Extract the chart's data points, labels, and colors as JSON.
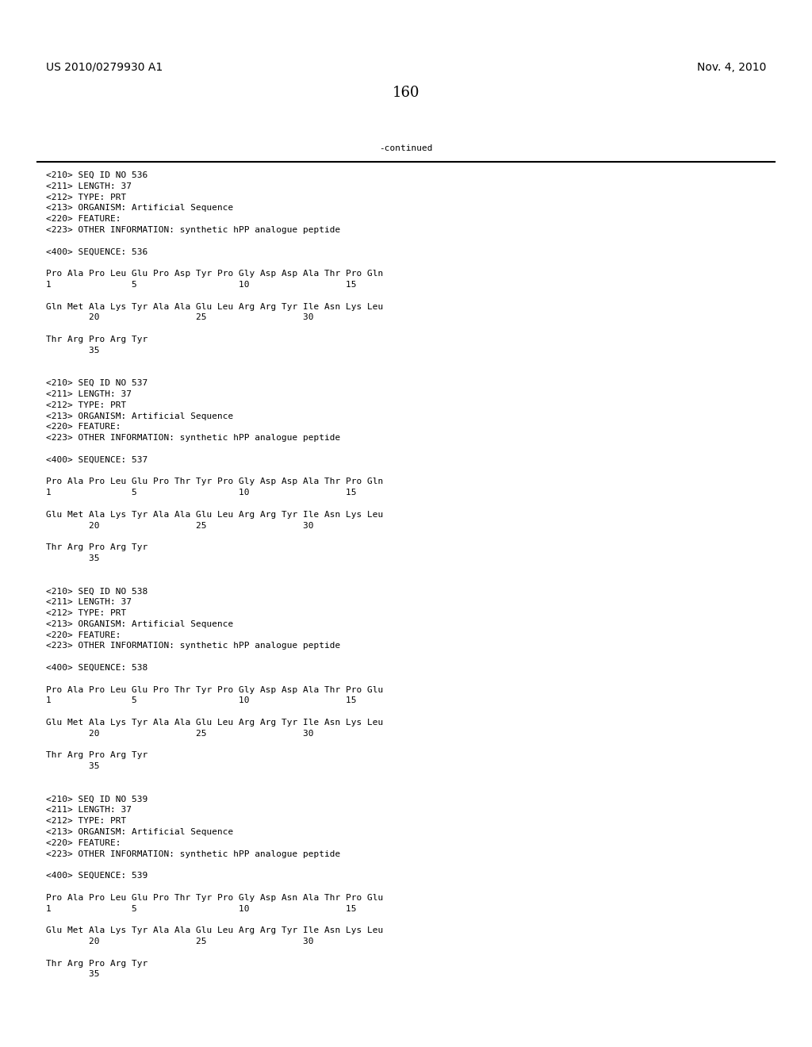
{
  "patent_number": "US 2010/0279930 A1",
  "date": "Nov. 4, 2010",
  "page_number": "160",
  "continued_label": "-continued",
  "background_color": "#ffffff",
  "text_color": "#000000",
  "font_size": 8.0,
  "lines": [
    "<210> SEQ ID NO 536",
    "<211> LENGTH: 37",
    "<212> TYPE: PRT",
    "<213> ORGANISM: Artificial Sequence",
    "<220> FEATURE:",
    "<223> OTHER INFORMATION: synthetic hPP analogue peptide",
    "",
    "<400> SEQUENCE: 536",
    "",
    "Pro Ala Pro Leu Glu Pro Asp Tyr Pro Gly Asp Asp Ala Thr Pro Gln",
    "1               5                   10                  15",
    "",
    "Gln Met Ala Lys Tyr Ala Ala Glu Leu Arg Arg Tyr Ile Asn Lys Leu",
    "        20                  25                  30",
    "",
    "Thr Arg Pro Arg Tyr",
    "        35",
    "",
    "",
    "<210> SEQ ID NO 537",
    "<211> LENGTH: 37",
    "<212> TYPE: PRT",
    "<213> ORGANISM: Artificial Sequence",
    "<220> FEATURE:",
    "<223> OTHER INFORMATION: synthetic hPP analogue peptide",
    "",
    "<400> SEQUENCE: 537",
    "",
    "Pro Ala Pro Leu Glu Pro Thr Tyr Pro Gly Asp Asp Ala Thr Pro Gln",
    "1               5                   10                  15",
    "",
    "Glu Met Ala Lys Tyr Ala Ala Glu Leu Arg Arg Tyr Ile Asn Lys Leu",
    "        20                  25                  30",
    "",
    "Thr Arg Pro Arg Tyr",
    "        35",
    "",
    "",
    "<210> SEQ ID NO 538",
    "<211> LENGTH: 37",
    "<212> TYPE: PRT",
    "<213> ORGANISM: Artificial Sequence",
    "<220> FEATURE:",
    "<223> OTHER INFORMATION: synthetic hPP analogue peptide",
    "",
    "<400> SEQUENCE: 538",
    "",
    "Pro Ala Pro Leu Glu Pro Thr Tyr Pro Gly Asp Asp Ala Thr Pro Glu",
    "1               5                   10                  15",
    "",
    "Glu Met Ala Lys Tyr Ala Ala Glu Leu Arg Arg Tyr Ile Asn Lys Leu",
    "        20                  25                  30",
    "",
    "Thr Arg Pro Arg Tyr",
    "        35",
    "",
    "",
    "<210> SEQ ID NO 539",
    "<211> LENGTH: 37",
    "<212> TYPE: PRT",
    "<213> ORGANISM: Artificial Sequence",
    "<220> FEATURE:",
    "<223> OTHER INFORMATION: synthetic hPP analogue peptide",
    "",
    "<400> SEQUENCE: 539",
    "",
    "Pro Ala Pro Leu Glu Pro Thr Tyr Pro Gly Asp Asn Ala Thr Pro Glu",
    "1               5                   10                  15",
    "",
    "Glu Met Ala Lys Tyr Ala Ala Glu Leu Arg Arg Tyr Ile Asn Lys Leu",
    "        20                  25                  30",
    "",
    "Thr Arg Pro Arg Tyr",
    "        35"
  ]
}
